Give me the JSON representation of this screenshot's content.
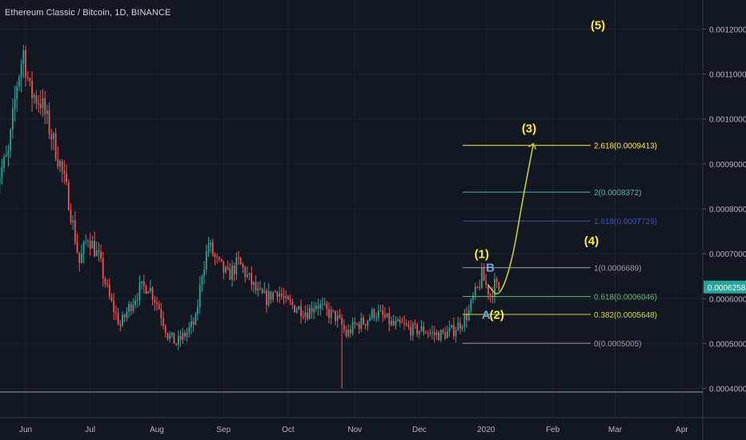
{
  "header": {
    "title": "Ethereum Classic / Bitcoin, 1D, BINANCE"
  },
  "colors": {
    "background": "#131722",
    "grid": "#1e2230",
    "up": "#26a69a",
    "down": "#ef5350",
    "text": "#b2b5be",
    "wave": "#ffeb3b",
    "wave_ab": "#6fa8dc",
    "price_badge": "#26a69a"
  },
  "chart_data": {
    "type": "candlestick",
    "title": "Ethereum Classic / Bitcoin, 1D, BINANCE",
    "y_axis": {
      "ticks": [
        "0.0012000",
        "0.0011000",
        "0.0010000",
        "0.0009000",
        "0.0008000",
        "0.0007000",
        "0.0006000",
        "0.0005000",
        "0.0004000"
      ],
      "current_price": "0.0006258",
      "range": [
        0.000335,
        0.001265
      ]
    },
    "x_axis": {
      "ticks": [
        "Jun",
        "Jul",
        "Aug",
        "Sep",
        "Oct",
        "Nov",
        "Dec",
        "2020",
        "Feb",
        "Mar",
        "Apr"
      ]
    },
    "price_path": [
      {
        "t": "May 18",
        "v": 0.00086
      },
      {
        "t": "May 24",
        "v": 0.00092
      },
      {
        "t": "May 28",
        "v": 0.00108
      },
      {
        "t": "May 31",
        "v": 0.00115
      },
      {
        "t": "Jun 03",
        "v": 0.00106
      },
      {
        "t": "Jun 08",
        "v": 0.00104
      },
      {
        "t": "Jun 12",
        "v": 0.00098
      },
      {
        "t": "Jun 17",
        "v": 0.0009
      },
      {
        "t": "Jun 21",
        "v": 0.00082
      },
      {
        "t": "Jun 26",
        "v": 0.00068
      },
      {
        "t": "Jun 30",
        "v": 0.00074
      },
      {
        "t": "Jul 05",
        "v": 0.00069
      },
      {
        "t": "Jul 10",
        "v": 0.0006
      },
      {
        "t": "Jul 15",
        "v": 0.00054
      },
      {
        "t": "Jul 19",
        "v": 0.00058
      },
      {
        "t": "Jul 24",
        "v": 0.00062
      },
      {
        "t": "Jul 28",
        "v": 0.00063
      },
      {
        "t": "Aug 02",
        "v": 0.00058
      },
      {
        "t": "Aug 06",
        "v": 0.00052
      },
      {
        "t": "Aug 10",
        "v": 0.0005
      },
      {
        "t": "Aug 14",
        "v": 0.00052
      },
      {
        "t": "Aug 19",
        "v": 0.00055
      },
      {
        "t": "Aug 22",
        "v": 0.00066
      },
      {
        "t": "Aug 25",
        "v": 0.00072
      },
      {
        "t": "Aug 29",
        "v": 0.00068
      },
      {
        "t": "Sep 03",
        "v": 0.00065
      },
      {
        "t": "Sep 08",
        "v": 0.00068
      },
      {
        "t": "Sep 12",
        "v": 0.00065
      },
      {
        "t": "Sep 17",
        "v": 0.00061
      },
      {
        "t": "Sep 21",
        "v": 0.0006
      },
      {
        "t": "Sep 26",
        "v": 0.00062
      },
      {
        "t": "Sep 30",
        "v": 0.00059
      },
      {
        "t": "Oct 05",
        "v": 0.00058
      },
      {
        "t": "Oct 10",
        "v": 0.00057
      },
      {
        "t": "Oct 14",
        "v": 0.00059
      },
      {
        "t": "Oct 19",
        "v": 0.00057
      },
      {
        "t": "Oct 23",
        "v": 0.00056
      },
      {
        "t": "Oct 26",
        "v": 0.00054
      },
      {
        "t": "Oct 28",
        "v": 0.00052
      },
      {
        "t": "Nov 01",
        "v": 0.00054
      },
      {
        "t": "Nov 06",
        "v": 0.00055
      },
      {
        "t": "Nov 10",
        "v": 0.00057
      },
      {
        "t": "Nov 14",
        "v": 0.00056
      },
      {
        "t": "Nov 19",
        "v": 0.00054
      },
      {
        "t": "Nov 23",
        "v": 0.00054
      },
      {
        "t": "Nov 28",
        "v": 0.00053
      },
      {
        "t": "Dec 03",
        "v": 0.00053
      },
      {
        "t": "Dec 08",
        "v": 0.00052
      },
      {
        "t": "Dec 12",
        "v": 0.00052
      },
      {
        "t": "Dec 17",
        "v": 0.00053
      },
      {
        "t": "Dec 21",
        "v": 0.00055
      },
      {
        "t": "Dec 24",
        "v": 0.00057
      },
      {
        "t": "Dec 26",
        "v": 0.0006
      },
      {
        "t": "Dec 28",
        "v": 0.00062
      },
      {
        "t": "Dec 30",
        "v": 0.00065
      },
      {
        "t": "Jan 01",
        "v": 0.00063
      },
      {
        "t": "Jan 03",
        "v": 0.00061
      },
      {
        "t": "Jan 05",
        "v": 0.00063
      },
      {
        "t": "Jan 07",
        "v": 0.00062
      }
    ],
    "fibonacci": [
      {
        "label": "2.618(0.0009413)",
        "value": 0.0009413,
        "color": "#ffeb3b"
      },
      {
        "label": "2(0.0008372)",
        "value": 0.0008372,
        "color": "#4db6ac"
      },
      {
        "label": "1.618(0.0007729)",
        "value": 0.0007729,
        "color": "#3f51b5"
      },
      {
        "label": "1(0.0006689)",
        "value": 0.0006689,
        "color": "#9e9e9e"
      },
      {
        "label": "0.618(0.0006046)",
        "value": 0.0006046,
        "color": "#66bb6a"
      },
      {
        "label": "0.382(0.0005648)",
        "value": 0.0005648,
        "color": "#cddc39"
      },
      {
        "label": "0(0.0005005)",
        "value": 0.0005005,
        "color": "#9e9e9e"
      }
    ],
    "wave_labels": [
      {
        "text": "(1)",
        "t": "Dec 30",
        "v": 0.00069
      },
      {
        "text": "(2)",
        "t": "Jan 06",
        "v": 0.000555
      },
      {
        "text": "(3)",
        "t": "Jan 21",
        "v": 0.00097
      },
      {
        "text": "(4)",
        "t": "Feb 19",
        "v": 0.00072
      },
      {
        "text": "(5)",
        "t": "Feb 22",
        "v": 0.0012
      }
    ],
    "correction_labels": [
      {
        "text": "B",
        "t": "Jan 03",
        "v": 0.00066
      },
      {
        "text": "A",
        "t": "Jan 01",
        "v": 0.000555
      }
    ],
    "projection": [
      {
        "t": "Jan 02",
        "v": 0.00063
      },
      {
        "t": "Jan 07",
        "v": 0.0006
      },
      {
        "t": "Jan 13",
        "v": 0.00068
      },
      {
        "t": "Jan 18",
        "v": 0.00082
      },
      {
        "t": "Jan 23",
        "v": 0.000945
      }
    ]
  }
}
